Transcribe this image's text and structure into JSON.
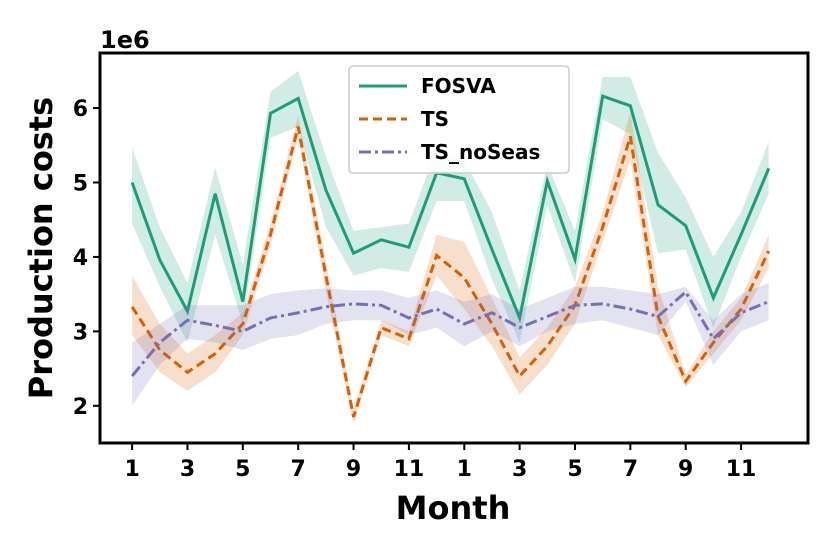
{
  "chart_data": {
    "type": "line",
    "offset_label": "1e6",
    "xlabel": "Month",
    "ylabel": "Production costs",
    "categories": [
      "1",
      null,
      "3",
      null,
      "5",
      null,
      "7",
      null,
      "9",
      null,
      "11",
      null,
      "1",
      null,
      "3",
      null,
      "5",
      null,
      "7",
      null,
      "9",
      null,
      "11",
      null
    ],
    "ylim": [
      1.5,
      6.74
    ],
    "yticks": [
      2,
      3,
      4,
      5,
      6
    ],
    "legend": "upper center",
    "grid": false,
    "series": [
      {
        "name": "FOSVA",
        "color": "#1b9e77",
        "linestyle": "solid",
        "values": [
          5.0,
          3.96,
          3.27,
          4.85,
          3.4,
          5.93,
          6.13,
          4.9,
          4.05,
          4.23,
          4.13,
          5.13,
          5.05,
          4.1,
          3.18,
          5.02,
          3.97,
          6.16,
          6.03,
          4.7,
          4.42,
          3.45,
          4.3,
          5.19
        ],
        "upper": [
          5.47,
          4.4,
          3.65,
          5.2,
          3.9,
          6.22,
          6.5,
          5.35,
          4.35,
          4.4,
          4.45,
          5.45,
          5.3,
          4.6,
          3.55,
          5.25,
          4.35,
          6.42,
          6.42,
          5.4,
          4.8,
          4.0,
          4.6,
          5.55
        ],
        "lower": [
          4.45,
          3.6,
          2.85,
          4.3,
          3.1,
          5.6,
          5.75,
          4.4,
          3.75,
          3.85,
          3.8,
          4.75,
          4.75,
          3.7,
          2.85,
          4.7,
          3.65,
          5.85,
          5.65,
          4.05,
          4.1,
          3.05,
          4.0,
          4.85
        ]
      },
      {
        "name": "TS",
        "color": "#d95f02",
        "linestyle": "dashed",
        "values": [
          3.33,
          2.75,
          2.45,
          2.7,
          3.1,
          4.3,
          5.75,
          3.75,
          1.85,
          3.05,
          2.9,
          4.02,
          3.72,
          3.1,
          2.4,
          2.8,
          3.35,
          4.4,
          5.62,
          3.2,
          2.33,
          2.85,
          3.3,
          4.08
        ],
        "upper": [
          3.75,
          3.1,
          2.7,
          2.95,
          3.25,
          4.45,
          5.9,
          3.95,
          1.95,
          3.15,
          3.0,
          4.3,
          4.2,
          3.45,
          2.65,
          3.05,
          3.6,
          4.6,
          5.95,
          3.6,
          2.42,
          3.0,
          3.45,
          4.3
        ],
        "lower": [
          2.95,
          2.45,
          2.2,
          2.45,
          2.95,
          4.15,
          5.6,
          3.55,
          1.75,
          2.95,
          2.8,
          3.75,
          3.3,
          2.8,
          2.15,
          2.55,
          3.1,
          4.2,
          5.3,
          2.95,
          2.25,
          2.7,
          3.15,
          3.85
        ]
      },
      {
        "name": "TS_noSeas",
        "color": "#7570b3",
        "linestyle": "dashdot",
        "values": [
          2.4,
          2.85,
          3.15,
          3.08,
          3.0,
          3.18,
          3.25,
          3.33,
          3.37,
          3.35,
          3.18,
          3.3,
          3.1,
          3.25,
          3.05,
          3.2,
          3.35,
          3.37,
          3.3,
          3.2,
          3.53,
          2.9,
          3.25,
          3.4
        ],
        "upper": [
          2.85,
          3.1,
          3.35,
          3.35,
          3.35,
          3.5,
          3.55,
          3.58,
          3.55,
          3.55,
          3.45,
          3.55,
          3.4,
          3.5,
          3.3,
          3.45,
          3.6,
          3.6,
          3.55,
          3.5,
          3.6,
          3.15,
          3.5,
          3.65
        ],
        "lower": [
          2.0,
          2.55,
          2.9,
          2.85,
          2.75,
          2.9,
          2.95,
          3.1,
          3.15,
          3.15,
          2.95,
          3.05,
          2.8,
          3.0,
          2.8,
          3.0,
          3.1,
          3.15,
          3.05,
          2.95,
          3.4,
          2.55,
          3.0,
          3.15
        ]
      }
    ]
  }
}
